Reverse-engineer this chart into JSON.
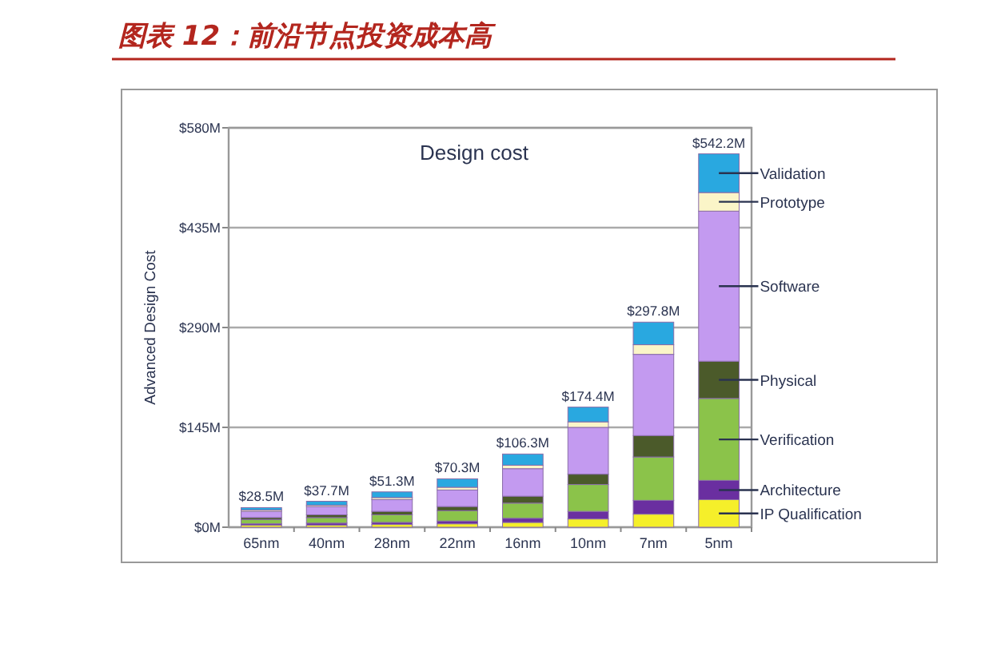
{
  "chart_data": {
    "type": "bar",
    "title": "图表 12：前沿节点投资成本高",
    "subtitle": "Design cost",
    "ylabel": "Advanced Design Cost",
    "stacked": true,
    "grid": "y",
    "legend": false,
    "categories": [
      "65nm",
      "40nm",
      "28nm",
      "22nm",
      "16nm",
      "10nm",
      "7nm",
      "5nm"
    ],
    "ylim": [
      0,
      580
    ],
    "yticks": [
      {
        "value": 0,
        "label": "$0M"
      },
      {
        "value": 145,
        "label": "$145M"
      },
      {
        "value": 290,
        "label": "$290M"
      },
      {
        "value": 435,
        "label": "$435M"
      },
      {
        "value": 580,
        "label": "$580M"
      }
    ],
    "totals": [
      "$28.5M",
      "$37.7M",
      "$51.3M",
      "$70.3M",
      "$106.3M",
      "$174.4M",
      "$297.8M",
      "$542.2M"
    ],
    "series": [
      {
        "name": "IP Qualification",
        "color": "#f5ef2a",
        "values": [
          3,
          3,
          4,
          5,
          7,
          12,
          19,
          40
        ]
      },
      {
        "name": "Architecture",
        "color": "#6a2fa0",
        "values": [
          2,
          3,
          3,
          4,
          6,
          11,
          20,
          28
        ]
      },
      {
        "name": "Verification",
        "color": "#8bc34a",
        "values": [
          6,
          8,
          11,
          15,
          22,
          39,
          63,
          119
        ]
      },
      {
        "name": "Physical",
        "color": "#4b5a2a",
        "values": [
          3,
          4,
          5,
          6,
          10,
          15,
          31,
          54
        ]
      },
      {
        "name": "Software",
        "color": "#c39af0",
        "values": [
          9,
          12,
          17,
          24,
          40,
          68,
          118,
          218
        ]
      },
      {
        "name": "Prototype",
        "color": "#fbf5c8",
        "values": [
          2,
          2,
          3,
          4,
          5,
          8,
          14,
          27
        ]
      },
      {
        "name": "Validation",
        "color": "#29a8e0",
        "values": [
          3.5,
          5.7,
          8.3,
          12.3,
          16.3,
          21.4,
          32.8,
          56.2
        ]
      }
    ]
  }
}
